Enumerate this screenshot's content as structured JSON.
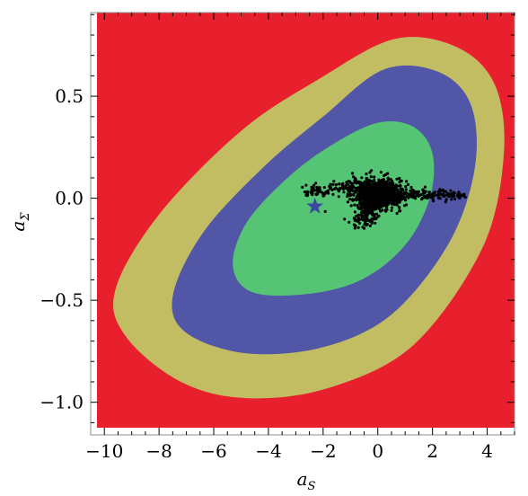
{
  "chart_data": {
    "type": "contour",
    "xlabel": {
      "main": "a",
      "sub": "S"
    },
    "ylabel": {
      "main": "a",
      "sub": "Σ"
    },
    "xlim": [
      -10.5,
      5.0
    ],
    "ylim": [
      -1.16,
      0.91
    ],
    "x_ticks": [
      {
        "value": -10,
        "label": "−10"
      },
      {
        "value": -8,
        "label": "−8"
      },
      {
        "value": -6,
        "label": "−6"
      },
      {
        "value": -4,
        "label": "−4"
      },
      {
        "value": -2,
        "label": "−2"
      },
      {
        "value": 0,
        "label": "0"
      },
      {
        "value": 2,
        "label": "2"
      },
      {
        "value": 4,
        "label": "4"
      }
    ],
    "y_ticks": [
      {
        "value": 0.5,
        "label": "0.5"
      },
      {
        "value": 0.0,
        "label": "0.0"
      },
      {
        "value": -0.5,
        "label": "−0.5"
      },
      {
        "value": -1.0,
        "label": "−1.0"
      }
    ],
    "background_region": {
      "color": "#e8202e"
    },
    "regions": [
      {
        "color": "#c2bd62",
        "boundary": [
          [
            -2.2,
            0.58
          ],
          [
            0.6,
            0.78
          ],
          [
            2.9,
            0.74
          ],
          [
            4.3,
            0.55
          ],
          [
            4.6,
            0.2
          ],
          [
            3.8,
            -0.25
          ],
          [
            1.3,
            -0.72
          ],
          [
            -1.8,
            -0.93
          ],
          [
            -4.8,
            -0.98
          ],
          [
            -7.2,
            -0.9
          ],
          [
            -9.2,
            -0.68
          ],
          [
            -9.6,
            -0.45
          ],
          [
            -8.0,
            -0.08
          ],
          [
            -5.0,
            0.33
          ],
          [
            -2.2,
            0.58
          ]
        ]
      },
      {
        "color": "#5157a6",
        "boundary": [
          [
            -2.0,
            0.4
          ],
          [
            0.2,
            0.63
          ],
          [
            2.2,
            0.62
          ],
          [
            3.4,
            0.46
          ],
          [
            3.55,
            0.15
          ],
          [
            2.6,
            -0.22
          ],
          [
            0.5,
            -0.57
          ],
          [
            -2.0,
            -0.73
          ],
          [
            -4.8,
            -0.76
          ],
          [
            -7.0,
            -0.66
          ],
          [
            -7.5,
            -0.48
          ],
          [
            -6.4,
            -0.17
          ],
          [
            -4.2,
            0.15
          ],
          [
            -2.0,
            0.4
          ]
        ]
      },
      {
        "color": "#55c475",
        "boundary": [
          [
            -1.7,
            0.26
          ],
          [
            0.0,
            0.37
          ],
          [
            1.3,
            0.35
          ],
          [
            2.0,
            0.22
          ],
          [
            1.9,
            0.0
          ],
          [
            1.0,
            -0.23
          ],
          [
            -0.6,
            -0.4
          ],
          [
            -2.6,
            -0.47
          ],
          [
            -4.6,
            -0.46
          ],
          [
            -5.3,
            -0.33
          ],
          [
            -4.8,
            -0.12
          ],
          [
            -3.3,
            0.1
          ],
          [
            -1.7,
            0.26
          ]
        ]
      }
    ],
    "best_fit": {
      "x": -2.3,
      "y": -0.04,
      "marker": "star",
      "color": "#3a4aa0"
    },
    "scatter": {
      "color": "#000000",
      "count": 1400,
      "center": [
        0.0,
        0.02
      ],
      "tail_to": [
        3.2,
        0.02
      ]
    }
  }
}
